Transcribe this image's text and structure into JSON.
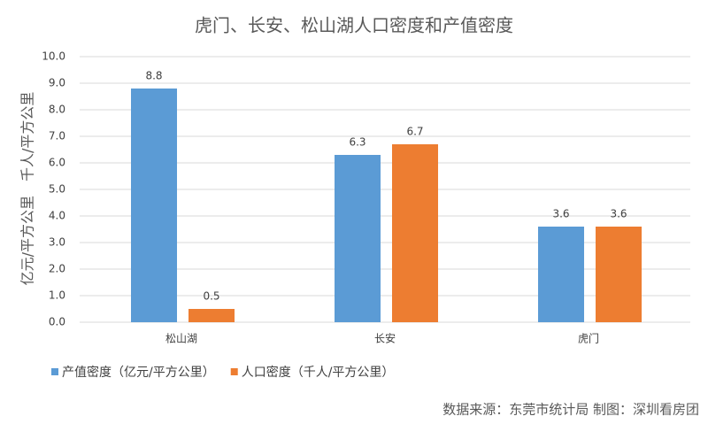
{
  "chart_data": {
    "type": "bar",
    "title": "虎门、长安、松山湖人口密度和产值密度",
    "ylabel": "亿元/平方公里　千人/平方公里",
    "categories": [
      "松山湖",
      "长安",
      "虎门"
    ],
    "series": [
      {
        "name": "产值密度（亿元/平方公里）",
        "color": "#5b9bd5",
        "values": [
          8.8,
          6.3,
          3.6
        ]
      },
      {
        "name": "人口密度（千人/平方公里）",
        "color": "#ed7d31",
        "values": [
          0.5,
          6.7,
          3.6
        ]
      }
    ],
    "ylim": [
      0,
      10
    ],
    "yticks": [
      {
        "value": 0,
        "label": "0.0"
      },
      {
        "value": 1,
        "label": "1.0"
      },
      {
        "value": 2,
        "label": "2.0"
      },
      {
        "value": 3,
        "label": "3.0"
      },
      {
        "value": 4,
        "label": "4.0"
      },
      {
        "value": 5,
        "label": "5.0"
      },
      {
        "value": 6,
        "label": "6.0"
      },
      {
        "value": 7,
        "label": "7.0"
      },
      {
        "value": 8,
        "label": "8.0"
      },
      {
        "value": 9,
        "label": "9.0"
      },
      {
        "value": 10,
        "label": "10.0"
      }
    ],
    "grid": true,
    "legend": "bottom-left",
    "source": "数据来源：东莞市统计局 制图：深圳看房团"
  }
}
